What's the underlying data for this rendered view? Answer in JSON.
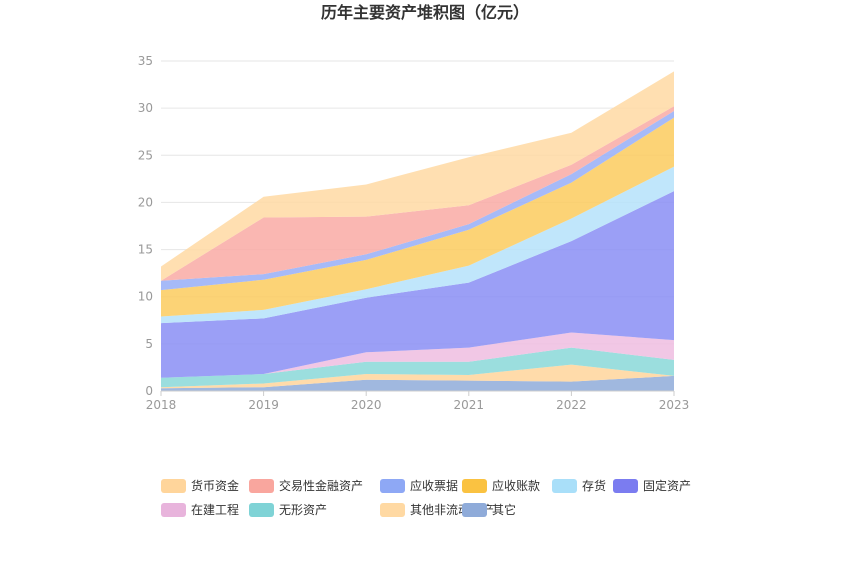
{
  "chart_data": {
    "type": "area",
    "stacked": true,
    "title": "历年主要资产堆积图（亿元）",
    "x": [
      "2018",
      "2019",
      "2020",
      "2021",
      "2022",
      "2023"
    ],
    "ylim": [
      0,
      35
    ],
    "yticks": [
      0,
      5,
      10,
      15,
      20,
      25,
      30,
      35
    ],
    "grid": true,
    "legend_position": "bottom",
    "series": [
      {
        "name": "其它",
        "color": "#8fabd9",
        "values": [
          0.3,
          0.4,
          1.2,
          1.1,
          1.0,
          1.6
        ]
      },
      {
        "name": "其他非流动资产",
        "color": "#ffd59b",
        "values": [
          0.1,
          0.4,
          0.6,
          0.6,
          1.8,
          0.0
        ]
      },
      {
        "name": "无形资产",
        "color": "#8ad8d8",
        "values": [
          1.0,
          1.0,
          1.3,
          1.4,
          1.8,
          1.7
        ]
      },
      {
        "name": "在建工程",
        "color": "#eebde0",
        "values": [
          0.0,
          0.0,
          1.0,
          1.5,
          1.6,
          2.1
        ]
      },
      {
        "name": "固定资产",
        "color": "#8a8ef5",
        "values": [
          5.8,
          5.9,
          5.8,
          6.9,
          9.7,
          15.8
        ]
      },
      {
        "name": "存货",
        "color": "#b5e2fa",
        "values": [
          0.7,
          0.9,
          0.9,
          1.8,
          2.4,
          2.6
        ]
      },
      {
        "name": "应收账款",
        "color": "#fccb5e",
        "values": [
          2.8,
          3.2,
          3.1,
          3.8,
          3.8,
          5.2
        ]
      },
      {
        "name": "应收票据",
        "color": "#96aef7",
        "values": [
          1.0,
          0.6,
          0.6,
          0.6,
          0.9,
          0.7
        ]
      },
      {
        "name": "交易性金融资产",
        "color": "#f9aaa4",
        "values": [
          0.0,
          6.0,
          4.0,
          2.0,
          1.0,
          0.5
        ]
      },
      {
        "name": "货币资金",
        "color": "#ffd9a3",
        "values": [
          1.5,
          2.2,
          3.4,
          5.1,
          3.4,
          3.7
        ]
      }
    ],
    "legend_order": [
      "货币资金",
      "交易性金融资产",
      "应收票据",
      "应收账款",
      "存货",
      "固定资产",
      "在建工程",
      "无形资产",
      "其他非流动资产",
      "其它"
    ],
    "legend_colors": {
      "货币资金": "#ffd59b",
      "交易性金融资产": "#f9a69e",
      "应收票据": "#8ea8f5",
      "应收账款": "#fac241",
      "存货": "#a9dff9",
      "固定资产": "#7b7cf0",
      "在建工程": "#e8b4dc",
      "无形资产": "#7fd3d6",
      "其他非流动资产": "#ffd9a3",
      "其它": "#8fabd9"
    }
  }
}
